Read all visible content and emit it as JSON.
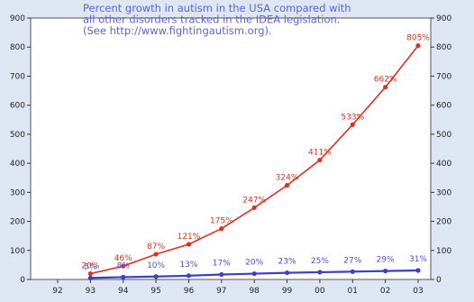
{
  "chart_data": {
    "type": "line",
    "title": [
      "Percent growth in autism in the USA compared with",
      "all other disorders tracked in the IDEA legislation.",
      "(See http://www.fightingautism.org)."
    ],
    "x": [
      "92",
      "93",
      "94",
      "95",
      "96",
      "97",
      "98",
      "99",
      "00",
      "01",
      "02",
      "03"
    ],
    "ylim": [
      0,
      900
    ],
    "yticks": [
      "0",
      "100",
      "200",
      "300",
      "400",
      "500",
      "600",
      "700",
      "800",
      "900"
    ],
    "grid": false,
    "series": [
      {
        "color": "#e0301e",
        "values": [
          0,
          20,
          46,
          87,
          121,
          175,
          247,
          324,
          411,
          533,
          662,
          805
        ],
        "labels": [
          "",
          "20%",
          "46%",
          "87%",
          "121%",
          "175%",
          "247%",
          "324%",
          "411%",
          "533%",
          "662%",
          "805%"
        ]
      },
      {
        "color": "#3b3fc4",
        "values": [
          0,
          5,
          8,
          10,
          13,
          17,
          20,
          23,
          25,
          27,
          29,
          31
        ],
        "labels": [
          "",
          "5%",
          "8%",
          "10%",
          "13%",
          "17%",
          "20%",
          "23%",
          "25%",
          "27%",
          "29%",
          "31%"
        ]
      }
    ]
  }
}
